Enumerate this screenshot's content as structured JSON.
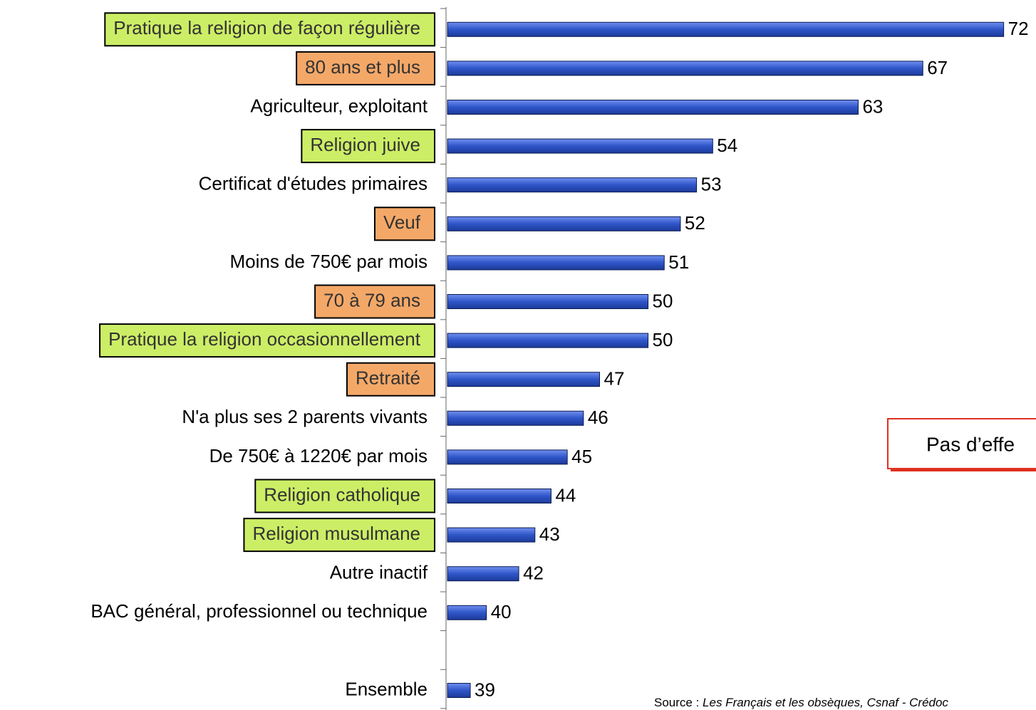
{
  "chart_data": {
    "type": "bar",
    "orientation": "horizontal",
    "categories": [
      "Pratique la religion de façon régulière",
      "80 ans et plus",
      "Agriculteur, exploitant",
      "Religion juive",
      "Certificat d'études primaires",
      "Veuf",
      "Moins de 750€ par mois",
      "70 à 79 ans",
      "Pratique la religion occasionnellement",
      "Retraité",
      "N'a plus ses 2 parents vivants",
      "De 750€ à 1220€ par mois",
      "Religion catholique",
      "Religion musulmane",
      "Autre inactif",
      "BAC général, professionnel ou technique",
      null,
      "Ensemble"
    ],
    "values": [
      72,
      67,
      63,
      54,
      53,
      52,
      51,
      50,
      50,
      47,
      46,
      45,
      44,
      43,
      42,
      40,
      null,
      39
    ],
    "highlights": [
      "#ccee66",
      "#f4a868",
      null,
      "#ccee66",
      null,
      "#f4a868",
      null,
      "#f4a868",
      "#ccee66",
      "#f4a868",
      null,
      null,
      "#ccee66",
      "#ccee66",
      null,
      null,
      null,
      null
    ],
    "color": "#2f55c8",
    "xlim": [
      37.5,
      74
    ],
    "annotation": "Pas d’effe",
    "source_prefix": "Source :",
    "source": "Les Français et les obsèques, Csnaf - Crédoc"
  }
}
